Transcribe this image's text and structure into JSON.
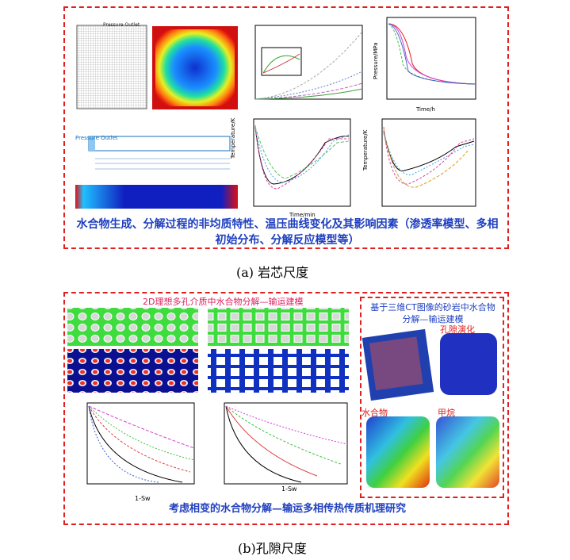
{
  "panel_a": {
    "summary": "水合物生成、分解过程的非均质特性、温压曲线变化及其影响因素（渗透率模型、多相初始分布、分解反应模型等）",
    "caption": "(a)  岩芯尺度",
    "labels": {
      "pressure_outlet": "Pressure Outlet",
      "temperature": "Temperature/K",
      "time": "Time/min",
      "time_h": "Time/h",
      "pressure": "Pressure/MPa"
    }
  },
  "panel_b": {
    "left_title": "2D理想多孔介质中水合物分解—输运建模",
    "right_title": "基于三维CT图像的砂岩中水合物分解—输运建模",
    "pore_evolution": "孔隙演化",
    "hydrate": "水合物",
    "methane": "甲烷",
    "x_label": "1-Sw",
    "summary": "考虑相变的水合物分解—输运多相传热传质机理研究",
    "caption": "(b)孔隙尺度"
  }
}
